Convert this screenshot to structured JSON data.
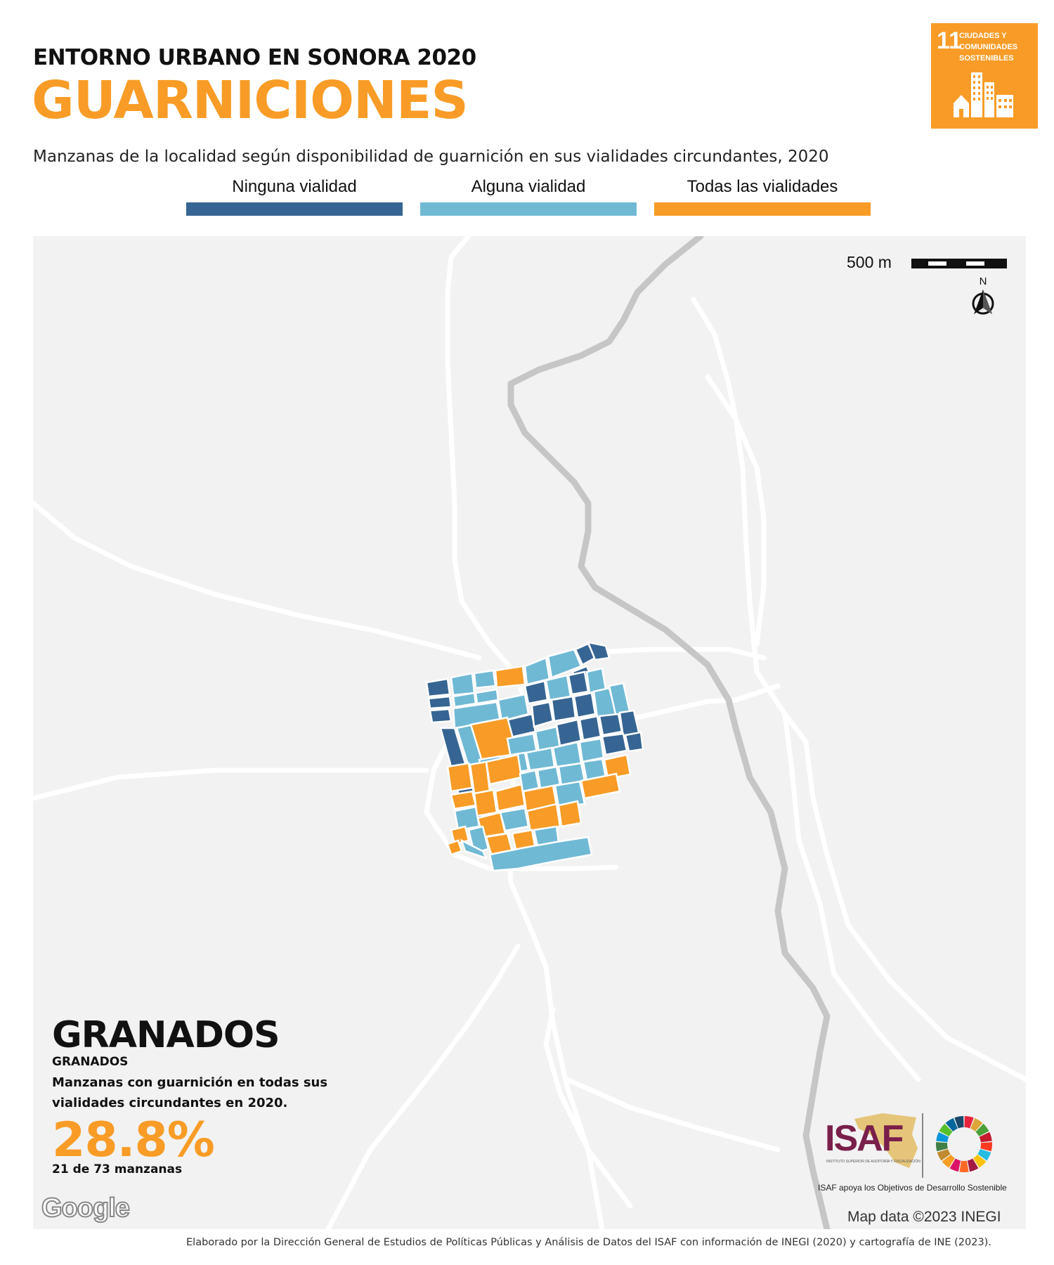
{
  "header": {
    "overline": "ENTORNO URBANO EN SONORA 2020",
    "title": "GUARNICIONES",
    "subtitle": "Manzanas de la localidad según disponibilidad de guarnición en sus vialidades circundantes, 2020"
  },
  "sdg_badge": {
    "number": "11",
    "text": "CIUDADES Y COMUNIDADES SOSTENIBLES",
    "color": "#F89C27",
    "icon": "city-buildings-icon"
  },
  "legend": [
    {
      "label": "Ninguna vialidad",
      "color": "#366593"
    },
    {
      "label": "Alguna vialidad",
      "color": "#70B9D5"
    },
    {
      "label": "Todas las vialidades",
      "color": "#F89C27"
    }
  ],
  "map": {
    "scale_label": "500 m",
    "north_label": "N",
    "locality": "GRANADOS",
    "locality_sub": "GRANADOS",
    "stat_description": "Manzanas con guarnición en todas sus vialidades circundantes en 2020.",
    "stat_value": "28.8%",
    "stat_count": "21 de 73 manzanas",
    "basemap_logo": "Google",
    "attribution": "Map data ©2023 INEGI",
    "river_color": "#c6c6c6",
    "road_color": "#ffffff",
    "background_color": "#f2f2f2"
  },
  "isaf": {
    "logo_text": "ISAF",
    "logo_small": "INSTITUTO SUPERIOR DE AUDITORÍA Y FISCALIZACIÓN",
    "caption": "ISAF apoya los Objetivos de Desarrollo Sostenible",
    "brand_color": "#7A1F4A",
    "icon": "sdg-wheel-icon"
  },
  "footer": "Elaborado por la Dirección General de Estudios de Políticas Públicas y Análisis de Datos del ISAF con información de INEGI (2020) y cartografía de INE (2023)."
}
